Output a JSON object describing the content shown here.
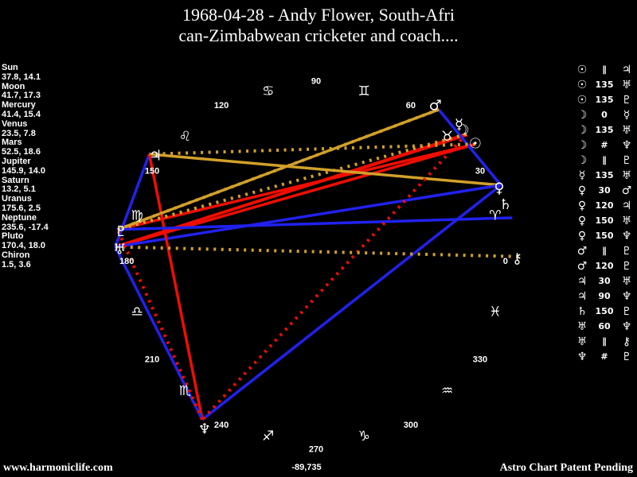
{
  "title": {
    "line1": "1968-04-28 - Andy Flower, South-Afri",
    "line2": "can-Zimbabwean cricketer and coach...."
  },
  "footer": {
    "website": "www.harmoniclife.com",
    "coords": "-89,735",
    "patent": "Astro Chart Patent Pending"
  },
  "colors": {
    "background": "#000000",
    "text": "#ffffff",
    "red_aspect": "#ee0e00",
    "blue_aspect": "#2121ee",
    "gold_aspect": "#d2a02a"
  },
  "chart_data": {
    "type": "astro_aspect_wheel",
    "description": "Planets plotted by ecliptic longitude on an elliptical zodiac wheel; aspect lines drawn between planet positions; longitude/declination pairs listed at left; aspect table at right",
    "planets": [
      {
        "name": "Sun",
        "glyph": "☉",
        "longitude": 37.8,
        "declination": 14.1,
        "display": "37.8, 14.1"
      },
      {
        "name": "Moon",
        "glyph": "☽",
        "longitude": 41.7,
        "declination": 17.3,
        "display": "41.7, 17.3"
      },
      {
        "name": "Mercury",
        "glyph": "☿",
        "longitude": 41.4,
        "declination": 15.4,
        "display": "41.4, 15.4"
      },
      {
        "name": "Venus",
        "glyph": "♀",
        "longitude": 23.5,
        "declination": 7.8,
        "display": "23.5, 7.8"
      },
      {
        "name": "Mars",
        "glyph": "♂",
        "longitude": 52.5,
        "declination": 18.6,
        "display": "52.5, 18.6"
      },
      {
        "name": "Jupiter",
        "glyph": "♃",
        "longitude": 145.9,
        "declination": 14.0,
        "display": "145.9, 14.0"
      },
      {
        "name": "Saturn",
        "glyph": "♄",
        "longitude": 13.2,
        "declination": 5.1,
        "display": "13.2, 5.1"
      },
      {
        "name": "Uranus",
        "glyph": "♅",
        "longitude": 175.6,
        "declination": 2.5,
        "display": "175.6, 2.5"
      },
      {
        "name": "Neptune",
        "glyph": "♆",
        "longitude": 235.6,
        "declination": -17.4,
        "display": "235.6, -17.4"
      },
      {
        "name": "Pluto",
        "glyph": "♇",
        "longitude": 170.4,
        "declination": 18.0,
        "display": "170.4, 18.0"
      },
      {
        "name": "Chiron",
        "glyph": "⚷",
        "longitude": 1.5,
        "declination": 3.6,
        "display": "1.5, 3.6"
      }
    ],
    "signs": [
      {
        "name": "Aries",
        "glyph": "♈",
        "mid_longitude": 15
      },
      {
        "name": "Taurus",
        "glyph": "♉",
        "mid_longitude": 45
      },
      {
        "name": "Gemini",
        "glyph": "♊",
        "mid_longitude": 75
      },
      {
        "name": "Cancer",
        "glyph": "♋",
        "mid_longitude": 105
      },
      {
        "name": "Leo",
        "glyph": "♌",
        "mid_longitude": 135
      },
      {
        "name": "Virgo",
        "glyph": "♍",
        "mid_longitude": 165
      },
      {
        "name": "Libra",
        "glyph": "♎",
        "mid_longitude": 195
      },
      {
        "name": "Scorpio",
        "glyph": "♏",
        "mid_longitude": 225
      },
      {
        "name": "Sagittarius",
        "glyph": "♐",
        "mid_longitude": 255
      },
      {
        "name": "Capricorn",
        "glyph": "♑",
        "mid_longitude": 285
      },
      {
        "name": "Aquarius",
        "glyph": "♒",
        "mid_longitude": 315
      },
      {
        "name": "Pisces",
        "glyph": "♓",
        "mid_longitude": 345
      }
    ],
    "ticks": [
      0,
      30,
      60,
      90,
      120,
      150,
      180,
      210,
      240,
      270,
      300,
      330
    ],
    "aspects": [
      {
        "p1": "Sun",
        "type": "∥",
        "p2": "Jupiter"
      },
      {
        "p1": "Sun",
        "type": "135",
        "p2": "Uranus"
      },
      {
        "p1": "Sun",
        "type": "135",
        "p2": "Pluto"
      },
      {
        "p1": "Moon",
        "type": "0",
        "p2": "Mercury"
      },
      {
        "p1": "Moon",
        "type": "135",
        "p2": "Uranus"
      },
      {
        "p1": "Moon",
        "type": "#",
        "p2": "Neptune"
      },
      {
        "p1": "Moon",
        "type": "∥",
        "p2": "Pluto"
      },
      {
        "p1": "Mercury",
        "type": "135",
        "p2": "Uranus"
      },
      {
        "p1": "Venus",
        "type": "30",
        "p2": "Mars"
      },
      {
        "p1": "Venus",
        "type": "120",
        "p2": "Jupiter"
      },
      {
        "p1": "Venus",
        "type": "150",
        "p2": "Uranus"
      },
      {
        "p1": "Venus",
        "type": "150",
        "p2": "Neptune"
      },
      {
        "p1": "Mars",
        "type": "∥",
        "p2": "Pluto"
      },
      {
        "p1": "Mars",
        "type": "120",
        "p2": "Pluto"
      },
      {
        "p1": "Jupiter",
        "type": "30",
        "p2": "Uranus"
      },
      {
        "p1": "Jupiter",
        "type": "90",
        "p2": "Neptune"
      },
      {
        "p1": "Saturn",
        "type": "150",
        "p2": "Pluto"
      },
      {
        "p1": "Uranus",
        "type": "60",
        "p2": "Neptune"
      },
      {
        "p1": "Uranus",
        "type": "∥",
        "p2": "Chiron"
      },
      {
        "p1": "Neptune",
        "type": "#",
        "p2": "Pluto"
      }
    ]
  }
}
